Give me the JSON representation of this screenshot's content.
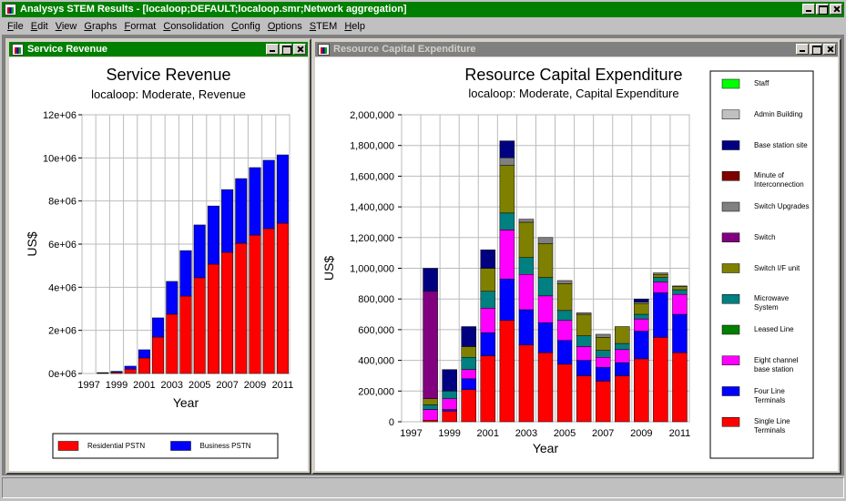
{
  "window": {
    "title": "Analysys STEM Results - [localoop;DEFAULT;localoop.smr;Network aggregation]",
    "menu": [
      "File",
      "Edit",
      "View",
      "Graphs",
      "Format",
      "Consolidation",
      "Config",
      "Options",
      "STEM",
      "Help"
    ]
  },
  "panels": [
    {
      "title": "Service Revenue"
    },
    {
      "title": "Resource Capital Expenditure"
    }
  ],
  "chart_data": [
    {
      "type": "bar",
      "stacked": true,
      "title": "Service Revenue",
      "subtitle": "localoop: Moderate, Revenue",
      "xlabel": "Year",
      "ylabel": "US$",
      "categories": [
        "1997",
        null,
        "1999",
        null,
        "2001",
        null,
        "2003",
        null,
        "2005",
        null,
        "2007",
        null,
        "2009",
        null,
        "2011"
      ],
      "series": [
        {
          "name": "Residential PSTN",
          "color": "#ff0000",
          "values": [
            0,
            20000,
            50000,
            200000,
            720000,
            1690000,
            2750000,
            3590000,
            4440000,
            5070000,
            5620000,
            6040000,
            6420000,
            6720000,
            6970000
          ]
        },
        {
          "name": "Business PSTN",
          "color": "#0000ff",
          "values": [
            0,
            20000,
            50000,
            140000,
            380000,
            890000,
            1520000,
            2110000,
            2450000,
            2700000,
            2910000,
            3000000,
            3130000,
            3170000,
            3170000
          ]
        }
      ],
      "ylim": [
        0,
        12000000
      ],
      "yticks": [
        {
          "value": 0,
          "label": "0e+06"
        },
        {
          "value": 2000000,
          "label": "2e+06"
        },
        {
          "value": 4000000,
          "label": "4e+06"
        },
        {
          "value": 6000000,
          "label": "6e+06"
        },
        {
          "value": 8000000,
          "label": "8e+06"
        },
        {
          "value": 10000000,
          "label": "10e+06"
        },
        {
          "value": 12000000,
          "label": "12e+06"
        }
      ],
      "grid": true,
      "legend": "bottom"
    },
    {
      "type": "bar",
      "stacked": true,
      "title": "Resource Capital Expenditure",
      "subtitle": "localoop: Moderate, Capital Expenditure",
      "xlabel": "Year",
      "ylabel": "US$",
      "categories": [
        "1997",
        null,
        "1999",
        null,
        "2001",
        null,
        "2003",
        null,
        "2005",
        null,
        "2007",
        null,
        "2009",
        null,
        "2011"
      ],
      "series": [
        {
          "name": "Single Line Terminals",
          "color": "#ff0000",
          "values": [
            0,
            10000,
            70000,
            210000,
            430000,
            660000,
            500000,
            450000,
            375000,
            300000,
            265000,
            300000,
            410000,
            550000,
            450000
          ]
        },
        {
          "name": "Four Line Terminals",
          "color": "#0000ff",
          "values": [
            0,
            0,
            10000,
            70000,
            150000,
            270000,
            230000,
            195000,
            155000,
            100000,
            90000,
            85000,
            180000,
            290000,
            250000
          ]
        },
        {
          "name": "Eight channel base station",
          "color": "#ff00ff",
          "values": [
            0,
            70000,
            70000,
            60000,
            160000,
            320000,
            230000,
            175000,
            130000,
            90000,
            65000,
            85000,
            80000,
            70000,
            130000
          ]
        },
        {
          "name": "Leased Line",
          "color": "#008000",
          "values": [
            0,
            0,
            0,
            0,
            0,
            0,
            0,
            0,
            0,
            0,
            0,
            0,
            0,
            0,
            0
          ]
        },
        {
          "name": "Microwave System",
          "color": "#008080",
          "values": [
            0,
            30000,
            50000,
            80000,
            110000,
            110000,
            110000,
            120000,
            65000,
            70000,
            45000,
            40000,
            30000,
            30000,
            30000
          ]
        },
        {
          "name": "Switch I/F unit",
          "color": "#808000",
          "values": [
            0,
            40000,
            0,
            70000,
            150000,
            310000,
            230000,
            220000,
            175000,
            140000,
            85000,
            110000,
            70000,
            20000,
            20000
          ]
        },
        {
          "name": "Switch",
          "color": "#800080",
          "values": [
            0,
            700000,
            0,
            0,
            0,
            0,
            0,
            0,
            0,
            0,
            0,
            0,
            0,
            0,
            0
          ]
        },
        {
          "name": "Switch Upgrades",
          "color": "#808080",
          "values": [
            0,
            0,
            0,
            0,
            0,
            50000,
            20000,
            40000,
            20000,
            10000,
            20000,
            0,
            10000,
            10000,
            5000
          ]
        },
        {
          "name": "Minute of Interconnection",
          "color": "#800000",
          "values": [
            0,
            0,
            0,
            0,
            0,
            0,
            0,
            0,
            0,
            0,
            0,
            0,
            0,
            0,
            0
          ]
        },
        {
          "name": "Base station site",
          "color": "#000080",
          "values": [
            0,
            150000,
            140000,
            130000,
            120000,
            110000,
            0,
            0,
            0,
            0,
            0,
            0,
            20000,
            0,
            0
          ]
        },
        {
          "name": "Admin Building",
          "color": "#c0c0c0",
          "values": [
            0,
            0,
            0,
            0,
            0,
            0,
            0,
            0,
            0,
            0,
            0,
            0,
            0,
            0,
            0
          ]
        },
        {
          "name": "Staff",
          "color": "#00ff00",
          "values": [
            0,
            0,
            0,
            0,
            0,
            0,
            0,
            0,
            0,
            0,
            0,
            0,
            0,
            0,
            0
          ]
        }
      ],
      "ylim": [
        0,
        2000000
      ],
      "yticks": [
        0,
        {
          "value": 200000,
          "label": "200,000"
        },
        {
          "value": 400000,
          "label": "400,000"
        },
        {
          "value": 600000,
          "label": "600,000"
        },
        {
          "value": 800000,
          "label": "800,000"
        },
        {
          "value": 1000000,
          "label": "1,000,000"
        },
        {
          "value": 1200000,
          "label": "1,200,000"
        },
        {
          "value": 1400000,
          "label": "1,400,000"
        },
        {
          "value": 1600000,
          "label": "1,600,000"
        },
        {
          "value": 1800000,
          "label": "1,800,000"
        },
        {
          "value": 2000000,
          "label": "2,000,000"
        }
      ],
      "grid": true,
      "legend": "right"
    }
  ]
}
